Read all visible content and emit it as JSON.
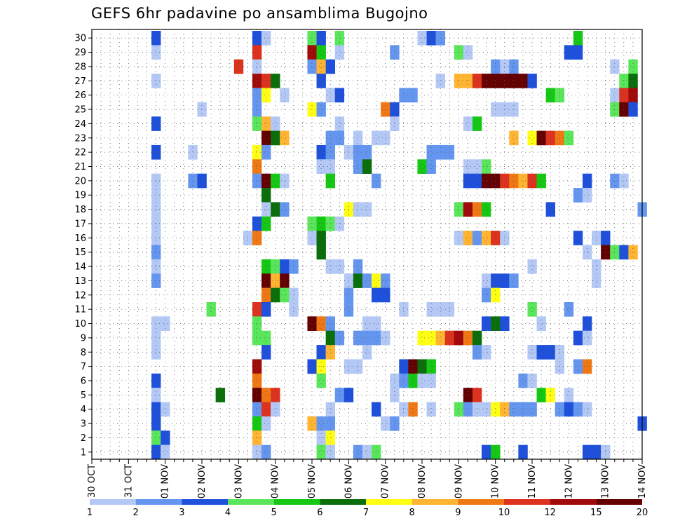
{
  "chart_data": {
    "type": "heatmap",
    "title": "GEFS 6hr padavine po ansamblima Bugojno",
    "x_tick_labels": [
      "30 OCT",
      "31 OCT",
      "01 NOV",
      "02 NOV",
      "03 NOV",
      "04 NOV",
      "05 NOV",
      "06 NOV",
      "07 NOV",
      "08 NOV",
      "09 NOV",
      "10 NOV",
      "11 NOV",
      "12 NOV",
      "13 NOV",
      "14 NOV"
    ],
    "y_tick_labels": [
      "1",
      "2",
      "3",
      "4",
      "5",
      "6",
      "7",
      "8",
      "9",
      "10",
      "11",
      "12",
      "13",
      "14",
      "15",
      "16",
      "17",
      "18",
      "19",
      "20",
      "21",
      "22",
      "23",
      "24",
      "25",
      "26",
      "27",
      "28",
      "29",
      "30"
    ],
    "time_steps": 61,
    "x_start_tick_index": 0,
    "steps_per_day": 4,
    "members": 30,
    "grid": true,
    "colorbar": {
      "tick_labels": [
        "1",
        "2",
        "3",
        "4",
        "5",
        "6",
        "7",
        "8",
        "9",
        "10",
        "12",
        "15",
        "20"
      ],
      "colors": [
        "#b4c8f5",
        "#6496f0",
        "#1e50dc",
        "#5ae65a",
        "#14c814",
        "#0a6e0a",
        "#ffff14",
        "#ffb432",
        "#f07814",
        "#dc321e",
        "#a00a0a",
        "#640000"
      ]
    },
    "cells": [
      [
        30,
        7,
        3
      ],
      [
        30,
        18,
        3
      ],
      [
        30,
        19,
        1
      ],
      [
        30,
        24,
        4
      ],
      [
        30,
        25,
        3
      ],
      [
        30,
        27,
        4
      ],
      [
        30,
        36,
        1
      ],
      [
        30,
        37,
        3
      ],
      [
        30,
        38,
        2
      ],
      [
        30,
        53,
        5
      ],
      [
        29,
        7,
        1
      ],
      [
        29,
        18,
        10
      ],
      [
        29,
        24,
        11
      ],
      [
        29,
        25,
        5
      ],
      [
        29,
        27,
        1
      ],
      [
        29,
        33,
        2
      ],
      [
        29,
        40,
        4
      ],
      [
        29,
        41,
        1
      ],
      [
        29,
        52,
        3
      ],
      [
        29,
        53,
        3
      ],
      [
        28,
        16,
        10
      ],
      [
        28,
        18,
        1
      ],
      [
        28,
        24,
        2
      ],
      [
        28,
        25,
        8
      ],
      [
        28,
        26,
        3
      ],
      [
        28,
        44,
        2
      ],
      [
        28,
        45,
        1
      ],
      [
        28,
        46,
        2
      ],
      [
        28,
        57,
        1
      ],
      [
        28,
        59,
        4
      ],
      [
        27,
        7,
        1
      ],
      [
        27,
        18,
        11
      ],
      [
        27,
        19,
        10
      ],
      [
        27,
        20,
        6
      ],
      [
        27,
        25,
        3
      ],
      [
        27,
        38,
        1
      ],
      [
        27,
        40,
        8
      ],
      [
        27,
        41,
        8
      ],
      [
        27,
        42,
        10
      ],
      [
        27,
        43,
        12
      ],
      [
        27,
        44,
        12
      ],
      [
        27,
        45,
        12
      ],
      [
        27,
        46,
        12
      ],
      [
        27,
        47,
        12
      ],
      [
        27,
        48,
        3
      ],
      [
        27,
        58,
        4
      ],
      [
        27,
        59,
        6
      ],
      [
        26,
        18,
        2
      ],
      [
        26,
        19,
        7
      ],
      [
        26,
        21,
        1
      ],
      [
        26,
        26,
        1
      ],
      [
        26,
        27,
        3
      ],
      [
        26,
        34,
        2
      ],
      [
        26,
        35,
        2
      ],
      [
        26,
        50,
        5
      ],
      [
        26,
        51,
        4
      ],
      [
        26,
        57,
        1
      ],
      [
        26,
        58,
        10
      ],
      [
        26,
        59,
        11
      ],
      [
        25,
        12,
        1
      ],
      [
        25,
        18,
        2
      ],
      [
        25,
        24,
        7
      ],
      [
        25,
        25,
        2
      ],
      [
        25,
        32,
        9
      ],
      [
        25,
        33,
        3
      ],
      [
        25,
        44,
        1
      ],
      [
        25,
        45,
        1
      ],
      [
        25,
        46,
        1
      ],
      [
        25,
        57,
        4
      ],
      [
        25,
        58,
        12
      ],
      [
        25,
        59,
        3
      ],
      [
        24,
        7,
        3
      ],
      [
        24,
        18,
        4
      ],
      [
        24,
        19,
        8
      ],
      [
        24,
        20,
        1
      ],
      [
        24,
        27,
        1
      ],
      [
        24,
        33,
        1
      ],
      [
        24,
        41,
        1
      ],
      [
        24,
        42,
        5
      ],
      [
        23,
        19,
        12
      ],
      [
        23,
        20,
        6
      ],
      [
        23,
        21,
        8
      ],
      [
        23,
        26,
        2
      ],
      [
        23,
        27,
        2
      ],
      [
        23,
        29,
        1
      ],
      [
        23,
        31,
        1
      ],
      [
        23,
        32,
        1
      ],
      [
        23,
        46,
        8
      ],
      [
        23,
        48,
        7
      ],
      [
        23,
        49,
        12
      ],
      [
        23,
        50,
        10
      ],
      [
        23,
        51,
        9
      ],
      [
        23,
        52,
        4
      ],
      [
        22,
        7,
        3
      ],
      [
        22,
        11,
        1
      ],
      [
        22,
        18,
        7
      ],
      [
        22,
        19,
        2
      ],
      [
        22,
        25,
        3
      ],
      [
        22,
        26,
        2
      ],
      [
        22,
        28,
        1
      ],
      [
        22,
        29,
        2
      ],
      [
        22,
        30,
        2
      ],
      [
        22,
        37,
        2
      ],
      [
        22,
        38,
        2
      ],
      [
        22,
        39,
        2
      ],
      [
        21,
        18,
        9
      ],
      [
        21,
        25,
        1
      ],
      [
        21,
        26,
        1
      ],
      [
        21,
        29,
        2
      ],
      [
        21,
        30,
        6
      ],
      [
        21,
        36,
        5
      ],
      [
        21,
        37,
        2
      ],
      [
        21,
        41,
        1
      ],
      [
        21,
        42,
        1
      ],
      [
        21,
        43,
        4
      ],
      [
        20,
        7,
        1
      ],
      [
        20,
        11,
        2
      ],
      [
        20,
        12,
        3
      ],
      [
        20,
        18,
        2
      ],
      [
        20,
        19,
        12
      ],
      [
        20,
        20,
        5
      ],
      [
        20,
        21,
        1
      ],
      [
        20,
        26,
        5
      ],
      [
        20,
        31,
        2
      ],
      [
        20,
        41,
        3
      ],
      [
        20,
        42,
        3
      ],
      [
        20,
        43,
        12
      ],
      [
        20,
        44,
        12
      ],
      [
        20,
        45,
        10
      ],
      [
        20,
        46,
        9
      ],
      [
        20,
        47,
        8
      ],
      [
        20,
        48,
        10
      ],
      [
        20,
        49,
        5
      ],
      [
        20,
        54,
        3
      ],
      [
        20,
        57,
        2
      ],
      [
        20,
        58,
        1
      ],
      [
        19,
        7,
        1
      ],
      [
        19,
        19,
        6
      ],
      [
        19,
        53,
        2
      ],
      [
        19,
        54,
        1
      ],
      [
        18,
        7,
        1
      ],
      [
        18,
        19,
        1
      ],
      [
        18,
        20,
        6
      ],
      [
        18,
        21,
        2
      ],
      [
        18,
        28,
        7
      ],
      [
        18,
        29,
        1
      ],
      [
        18,
        30,
        1
      ],
      [
        18,
        40,
        4
      ],
      [
        18,
        41,
        11
      ],
      [
        18,
        42,
        9
      ],
      [
        18,
        43,
        5
      ],
      [
        18,
        50,
        3
      ],
      [
        18,
        60,
        2
      ],
      [
        17,
        7,
        1
      ],
      [
        17,
        18,
        3
      ],
      [
        17,
        19,
        5
      ],
      [
        17,
        24,
        4
      ],
      [
        17,
        25,
        5
      ],
      [
        17,
        26,
        4
      ],
      [
        17,
        27,
        1
      ],
      [
        16,
        7,
        1
      ],
      [
        16,
        17,
        1
      ],
      [
        16,
        18,
        9
      ],
      [
        16,
        24,
        1
      ],
      [
        16,
        25,
        6
      ],
      [
        16,
        40,
        1
      ],
      [
        16,
        41,
        8
      ],
      [
        16,
        42,
        2
      ],
      [
        16,
        43,
        8
      ],
      [
        16,
        44,
        10
      ],
      [
        16,
        45,
        1
      ],
      [
        16,
        53,
        3
      ],
      [
        16,
        55,
        1
      ],
      [
        16,
        56,
        3
      ],
      [
        15,
        7,
        2
      ],
      [
        15,
        25,
        6
      ],
      [
        15,
        54,
        1
      ],
      [
        15,
        56,
        12
      ],
      [
        15,
        57,
        4
      ],
      [
        15,
        58,
        3
      ],
      [
        15,
        59,
        8
      ],
      [
        14,
        7,
        1
      ],
      [
        14,
        19,
        5
      ],
      [
        14,
        20,
        4
      ],
      [
        14,
        21,
        3
      ],
      [
        14,
        22,
        2
      ],
      [
        14,
        26,
        1
      ],
      [
        14,
        27,
        1
      ],
      [
        14,
        29,
        2
      ],
      [
        14,
        48,
        1
      ],
      [
        14,
        55,
        1
      ],
      [
        13,
        7,
        2
      ],
      [
        13,
        19,
        12
      ],
      [
        13,
        20,
        8
      ],
      [
        13,
        21,
        12
      ],
      [
        13,
        28,
        1
      ],
      [
        13,
        29,
        6
      ],
      [
        13,
        30,
        2
      ],
      [
        13,
        31,
        7
      ],
      [
        13,
        32,
        2
      ],
      [
        13,
        43,
        1
      ],
      [
        13,
        44,
        3
      ],
      [
        13,
        45,
        3
      ],
      [
        13,
        46,
        2
      ],
      [
        13,
        55,
        1
      ],
      [
        12,
        19,
        9
      ],
      [
        12,
        20,
        6
      ],
      [
        12,
        21,
        4
      ],
      [
        12,
        22,
        1
      ],
      [
        12,
        28,
        2
      ],
      [
        12,
        31,
        3
      ],
      [
        12,
        32,
        3
      ],
      [
        12,
        43,
        2
      ],
      [
        12,
        44,
        7
      ],
      [
        11,
        13,
        4
      ],
      [
        11,
        18,
        10
      ],
      [
        11,
        19,
        3
      ],
      [
        11,
        22,
        1
      ],
      [
        11,
        28,
        2
      ],
      [
        11,
        34,
        1
      ],
      [
        11,
        37,
        1
      ],
      [
        11,
        38,
        1
      ],
      [
        11,
        39,
        1
      ],
      [
        11,
        48,
        4
      ],
      [
        11,
        52,
        2
      ],
      [
        10,
        7,
        1
      ],
      [
        10,
        8,
        1
      ],
      [
        10,
        18,
        4
      ],
      [
        10,
        24,
        12
      ],
      [
        10,
        25,
        9
      ],
      [
        10,
        26,
        2
      ],
      [
        10,
        30,
        1
      ],
      [
        10,
        31,
        1
      ],
      [
        10,
        43,
        3
      ],
      [
        10,
        44,
        6
      ],
      [
        10,
        45,
        3
      ],
      [
        10,
        49,
        1
      ],
      [
        10,
        54,
        3
      ],
      [
        9,
        7,
        1
      ],
      [
        9,
        18,
        4
      ],
      [
        9,
        19,
        4
      ],
      [
        9,
        26,
        6
      ],
      [
        9,
        27,
        2
      ],
      [
        9,
        29,
        2
      ],
      [
        9,
        30,
        2
      ],
      [
        9,
        31,
        2
      ],
      [
        9,
        32,
        1
      ],
      [
        9,
        36,
        7
      ],
      [
        9,
        37,
        7
      ],
      [
        9,
        38,
        8
      ],
      [
        9,
        39,
        10
      ],
      [
        9,
        40,
        11
      ],
      [
        9,
        41,
        9
      ],
      [
        9,
        42,
        6
      ],
      [
        9,
        53,
        3
      ],
      [
        9,
        54,
        1
      ],
      [
        8,
        7,
        1
      ],
      [
        8,
        19,
        3
      ],
      [
        8,
        25,
        3
      ],
      [
        8,
        26,
        8
      ],
      [
        8,
        30,
        1
      ],
      [
        8,
        42,
        2
      ],
      [
        8,
        43,
        1
      ],
      [
        8,
        48,
        1
      ],
      [
        8,
        49,
        3
      ],
      [
        8,
        50,
        3
      ],
      [
        8,
        51,
        1
      ],
      [
        7,
        18,
        11
      ],
      [
        7,
        24,
        3
      ],
      [
        7,
        25,
        7
      ],
      [
        7,
        28,
        1
      ],
      [
        7,
        29,
        1
      ],
      [
        7,
        34,
        3
      ],
      [
        7,
        35,
        12
      ],
      [
        7,
        36,
        6
      ],
      [
        7,
        37,
        5
      ],
      [
        7,
        51,
        1
      ],
      [
        7,
        53,
        2
      ],
      [
        7,
        54,
        9
      ],
      [
        6,
        7,
        3
      ],
      [
        6,
        18,
        9
      ],
      [
        6,
        25,
        4
      ],
      [
        6,
        33,
        1
      ],
      [
        6,
        34,
        2
      ],
      [
        6,
        35,
        5
      ],
      [
        6,
        36,
        1
      ],
      [
        6,
        37,
        1
      ],
      [
        6,
        47,
        2
      ],
      [
        6,
        48,
        1
      ],
      [
        5,
        7,
        1
      ],
      [
        5,
        14,
        6
      ],
      [
        5,
        18,
        12
      ],
      [
        5,
        19,
        9
      ],
      [
        5,
        20,
        10
      ],
      [
        5,
        27,
        2
      ],
      [
        5,
        28,
        3
      ],
      [
        5,
        33,
        1
      ],
      [
        5,
        41,
        12
      ],
      [
        5,
        42,
        10
      ],
      [
        5,
        49,
        5
      ],
      [
        5,
        50,
        7
      ],
      [
        5,
        52,
        1
      ],
      [
        4,
        7,
        3
      ],
      [
        4,
        8,
        1
      ],
      [
        4,
        18,
        2
      ],
      [
        4,
        19,
        10
      ],
      [
        4,
        20,
        1
      ],
      [
        4,
        26,
        1
      ],
      [
        4,
        31,
        3
      ],
      [
        4,
        34,
        1
      ],
      [
        4,
        35,
        9
      ],
      [
        4,
        37,
        1
      ],
      [
        4,
        40,
        4
      ],
      [
        4,
        41,
        2
      ],
      [
        4,
        42,
        1
      ],
      [
        4,
        43,
        1
      ],
      [
        4,
        44,
        7
      ],
      [
        4,
        45,
        8
      ],
      [
        4,
        46,
        2
      ],
      [
        4,
        47,
        2
      ],
      [
        4,
        48,
        2
      ],
      [
        4,
        51,
        2
      ],
      [
        4,
        52,
        3
      ],
      [
        4,
        53,
        2
      ],
      [
        4,
        54,
        1
      ],
      [
        3,
        7,
        3
      ],
      [
        3,
        18,
        5
      ],
      [
        3,
        19,
        1
      ],
      [
        3,
        24,
        8
      ],
      [
        3,
        25,
        2
      ],
      [
        3,
        26,
        2
      ],
      [
        3,
        32,
        1
      ],
      [
        3,
        33,
        2
      ],
      [
        3,
        60,
        3
      ],
      [
        2,
        7,
        4
      ],
      [
        2,
        8,
        3
      ],
      [
        2,
        18,
        8
      ],
      [
        2,
        25,
        1
      ],
      [
        2,
        26,
        7
      ],
      [
        1,
        7,
        3
      ],
      [
        1,
        8,
        1
      ],
      [
        1,
        18,
        1
      ],
      [
        1,
        19,
        2
      ],
      [
        1,
        25,
        4
      ],
      [
        1,
        26,
        1
      ],
      [
        1,
        29,
        2
      ],
      [
        1,
        30,
        1
      ],
      [
        1,
        31,
        4
      ],
      [
        1,
        43,
        3
      ],
      [
        1,
        44,
        5
      ],
      [
        1,
        47,
        3
      ],
      [
        1,
        54,
        3
      ],
      [
        1,
        55,
        3
      ],
      [
        1,
        56,
        1
      ]
    ]
  }
}
